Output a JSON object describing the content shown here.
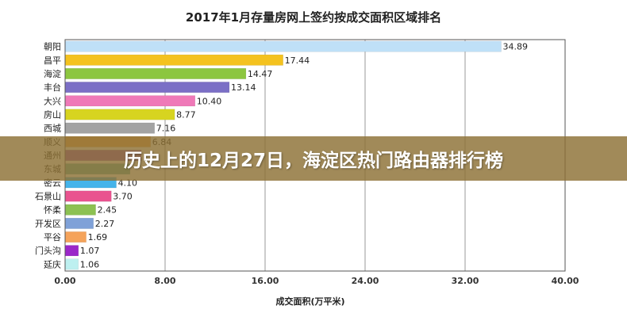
{
  "banner": {
    "text": "历史上的12月27日，海淀区热门路由器排行榜"
  },
  "chart_data": {
    "type": "bar",
    "orientation": "horizontal",
    "title": "2017年1月存量房网上签约按成交面积区域排名",
    "xlabel": "成交面积(万平米)",
    "ylabel": "",
    "xlim": [
      0,
      40
    ],
    "xticks": [
      "0.00",
      "8.00",
      "16.00",
      "24.00",
      "32.00",
      "40.00"
    ],
    "grid": true,
    "categories": [
      "朝阳",
      "昌平",
      "海淀",
      "丰台",
      "大兴",
      "房山",
      "西城",
      "顺义",
      "通州",
      "东城",
      "密云",
      "石景山",
      "怀柔",
      "开发区",
      "平谷",
      "门头沟",
      "延庆"
    ],
    "values": [
      34.89,
      17.44,
      14.47,
      13.14,
      10.4,
      8.77,
      7.16,
      6.84,
      6.1,
      5.2,
      4.1,
      3.7,
      2.45,
      2.27,
      1.69,
      1.07,
      1.06
    ],
    "value_labels": [
      "34.89",
      "17.44",
      "14.47",
      "13.14",
      "10.40",
      "8.77",
      "7.16",
      "6.84",
      "",
      "",
      "4.10",
      "3.70",
      "2.45",
      "2.27",
      "1.69",
      "1.07",
      "1.06"
    ],
    "colors": [
      "#bfe0f7",
      "#f4c21f",
      "#8cc63f",
      "#7b6fc6",
      "#ef79b8",
      "#d7d420",
      "#a3a3a3",
      "#f3a64e",
      "#9b4fb5",
      "#66b4a5",
      "#45b4ea",
      "#e9538f",
      "#8cc152",
      "#7fa1d8",
      "#f5a35a",
      "#9b27c9",
      "#bdf0f0"
    ]
  }
}
